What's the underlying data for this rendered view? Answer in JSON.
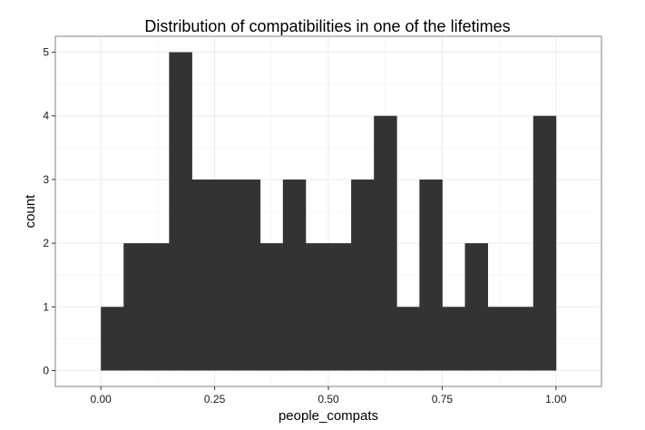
{
  "chart_data": {
    "type": "bar",
    "title": "Distribution of compatibilities in one of the lifetimes",
    "xlabel": "people_compats",
    "ylabel": "count",
    "xlim": [
      -0.1,
      1.1
    ],
    "ylim": [
      -0.25,
      5.25
    ],
    "grid": true,
    "bin_width": 0.05,
    "x_ticks": [
      "0.00",
      "0.25",
      "0.50",
      "0.75",
      "1.00"
    ],
    "y_ticks": [
      "0",
      "1",
      "2",
      "3",
      "4",
      "5"
    ],
    "bins": [
      {
        "x0": 0.0,
        "x1": 0.05,
        "count": 1
      },
      {
        "x0": 0.05,
        "x1": 0.1,
        "count": 2
      },
      {
        "x0": 0.1,
        "x1": 0.15,
        "count": 2
      },
      {
        "x0": 0.15,
        "x1": 0.2,
        "count": 5
      },
      {
        "x0": 0.2,
        "x1": 0.25,
        "count": 3
      },
      {
        "x0": 0.25,
        "x1": 0.3,
        "count": 3
      },
      {
        "x0": 0.3,
        "x1": 0.35,
        "count": 3
      },
      {
        "x0": 0.35,
        "x1": 0.4,
        "count": 2
      },
      {
        "x0": 0.4,
        "x1": 0.45,
        "count": 3
      },
      {
        "x0": 0.45,
        "x1": 0.5,
        "count": 2
      },
      {
        "x0": 0.5,
        "x1": 0.55,
        "count": 2
      },
      {
        "x0": 0.55,
        "x1": 0.6,
        "count": 3
      },
      {
        "x0": 0.6,
        "x1": 0.65,
        "count": 4
      },
      {
        "x0": 0.65,
        "x1": 0.7,
        "count": 1
      },
      {
        "x0": 0.7,
        "x1": 0.75,
        "count": 3
      },
      {
        "x0": 0.75,
        "x1": 0.8,
        "count": 1
      },
      {
        "x0": 0.8,
        "x1": 0.85,
        "count": 2
      },
      {
        "x0": 0.85,
        "x1": 0.9,
        "count": 1
      },
      {
        "x0": 0.9,
        "x1": 0.95,
        "count": 1
      },
      {
        "x0": 0.95,
        "x1": 1.0,
        "count": 4
      }
    ],
    "colors": {
      "bar": "#333333",
      "panel_background": "#ffffff",
      "panel_border": "#808080",
      "grid_major": "#ebebeb",
      "grid_minor": "#f5f5f5",
      "tick": "#333333"
    }
  }
}
